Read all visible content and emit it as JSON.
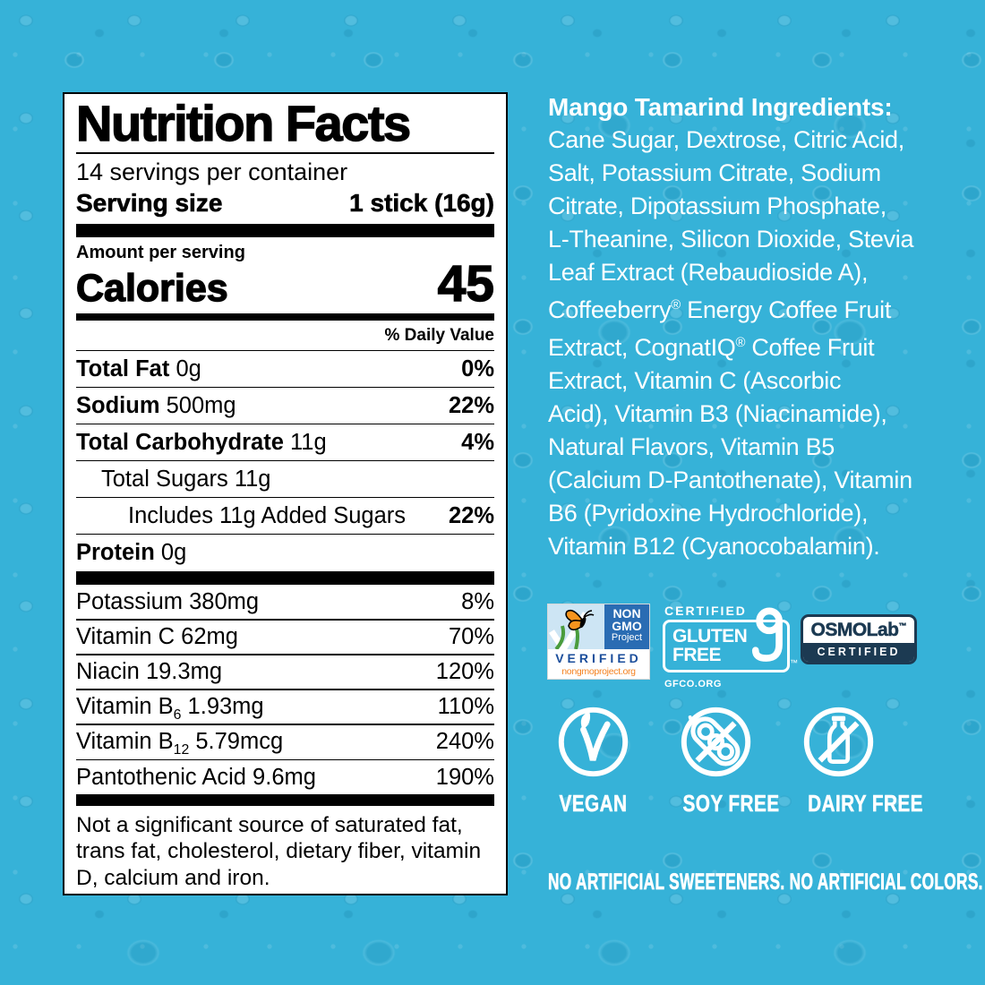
{
  "colors": {
    "bg": "#36b2d8",
    "ngblue": "#2a6cb3",
    "ngdark": "#1b4e9b",
    "orange": "#f58220",
    "green": "#4a9c3d",
    "sky": "#cde5f4",
    "navy": "#1c3a52",
    "label_text": "#000000",
    "panel_bg": "#ffffff"
  },
  "nutrition_label": {
    "title": "Nutrition Facts",
    "servings_per_container": "14 servings per container",
    "serving_size_label": "Serving size",
    "serving_size_value": "1 stick (16g)",
    "amount_per_serving": "Amount per serving",
    "calories_label": "Calories",
    "calories_value": "45",
    "daily_value_header": "% Daily Value",
    "macro_rows": [
      {
        "bold": "Total Fat",
        "rest": " 0g",
        "dv": "0%",
        "indent": 0
      },
      {
        "bold": "Sodium",
        "rest": " 500mg",
        "dv": "22%",
        "indent": 0
      },
      {
        "bold": "Total Carbohydrate",
        "rest": " 11g",
        "dv": "4%",
        "indent": 0
      },
      {
        "bold": "",
        "rest": "Total Sugars 11g",
        "dv": "",
        "indent": 1
      },
      {
        "bold": "",
        "rest": "Includes 11g Added Sugars",
        "dv": "22%",
        "indent": 2
      },
      {
        "bold": "Protein",
        "rest": " 0g",
        "dv": "",
        "indent": 0
      }
    ],
    "micro_rows": [
      {
        "text": "Potassium 380mg",
        "dv": "8%"
      },
      {
        "text": "Vitamin C 62mg",
        "dv": "70%"
      },
      {
        "text": "Niacin 19.3mg",
        "dv": "120%"
      },
      {
        "text": "Vitamin B",
        "sub": "6",
        "text2": " 1.93mg",
        "dv": "110%"
      },
      {
        "text": "Vitamin B",
        "sub": "12",
        "text2": " 5.79mcg",
        "dv": "240%"
      },
      {
        "text": "Pantothenic Acid 9.6mg",
        "dv": "190%"
      }
    ],
    "footnote": "Not a significant source of saturated fat,\ntrans fat, cholesterol, dietary fiber, vitamin\nD, calcium and iron."
  },
  "ingredients": {
    "heading": "Mango Tamarind Ingredients:",
    "body": "Cane Sugar, Dextrose, Citric Acid,\nSalt, Potassium Citrate, Sodium\nCitrate, Dipotassium Phosphate,\nL-Theanine, Silicon Dioxide, Stevia\nLeaf Extract (Rebaudioside A),\nCoffeeberry® Energy Coffee Fruit\nExtract, CognatIQ® Coffee Fruit\nExtract, Vitamin C (Ascorbic\nAcid), Vitamin B3 (Niacinamide),\nNatural Flavors, Vitamin B5\n(Calcium D-Pantothenate), Vitamin\nB6 (Pyridoxine Hydrochloride),\nVitamin B12 (Cyanocobalamin)."
  },
  "badges": {
    "non_gmo": {
      "line1": "NON",
      "line2": "GMO",
      "line3": "Project",
      "verified": "VERIFIED",
      "url": "nongmoproject.org"
    },
    "gluten_free": {
      "certified": "CERTIFIED",
      "word1": "GLUTEN",
      "word2": "FREE",
      "org": "GFCO.ORG",
      "tm": "™"
    },
    "osmolab": {
      "brand": "OSMOLab",
      "tm": "™",
      "certified": "CERTIFIED"
    }
  },
  "diet_icons": [
    {
      "label": "VEGAN"
    },
    {
      "label": "SOY FREE"
    },
    {
      "label": "DAIRY FREE"
    }
  ],
  "claims": "NO ARTIFICIAL SWEETENERS. NO ARTIFICIAL COLORS."
}
